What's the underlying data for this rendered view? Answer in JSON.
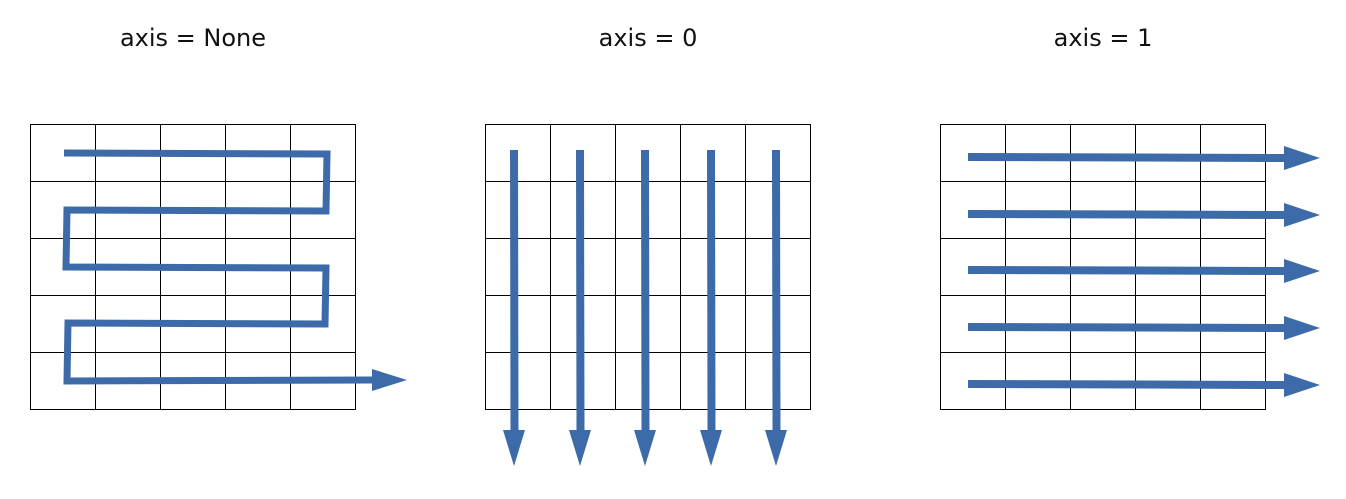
{
  "panels": [
    {
      "title": "axis = None",
      "rows": 5,
      "cols": 5,
      "traversal": "row-major-serpentine"
    },
    {
      "title": "axis = 0",
      "rows": 5,
      "cols": 5,
      "traversal": "down-columns"
    },
    {
      "title": "axis = 1",
      "rows": 5,
      "cols": 5,
      "traversal": "across-rows"
    }
  ],
  "colors": {
    "grid": "#000000",
    "arrow": "#3d6aa8"
  }
}
